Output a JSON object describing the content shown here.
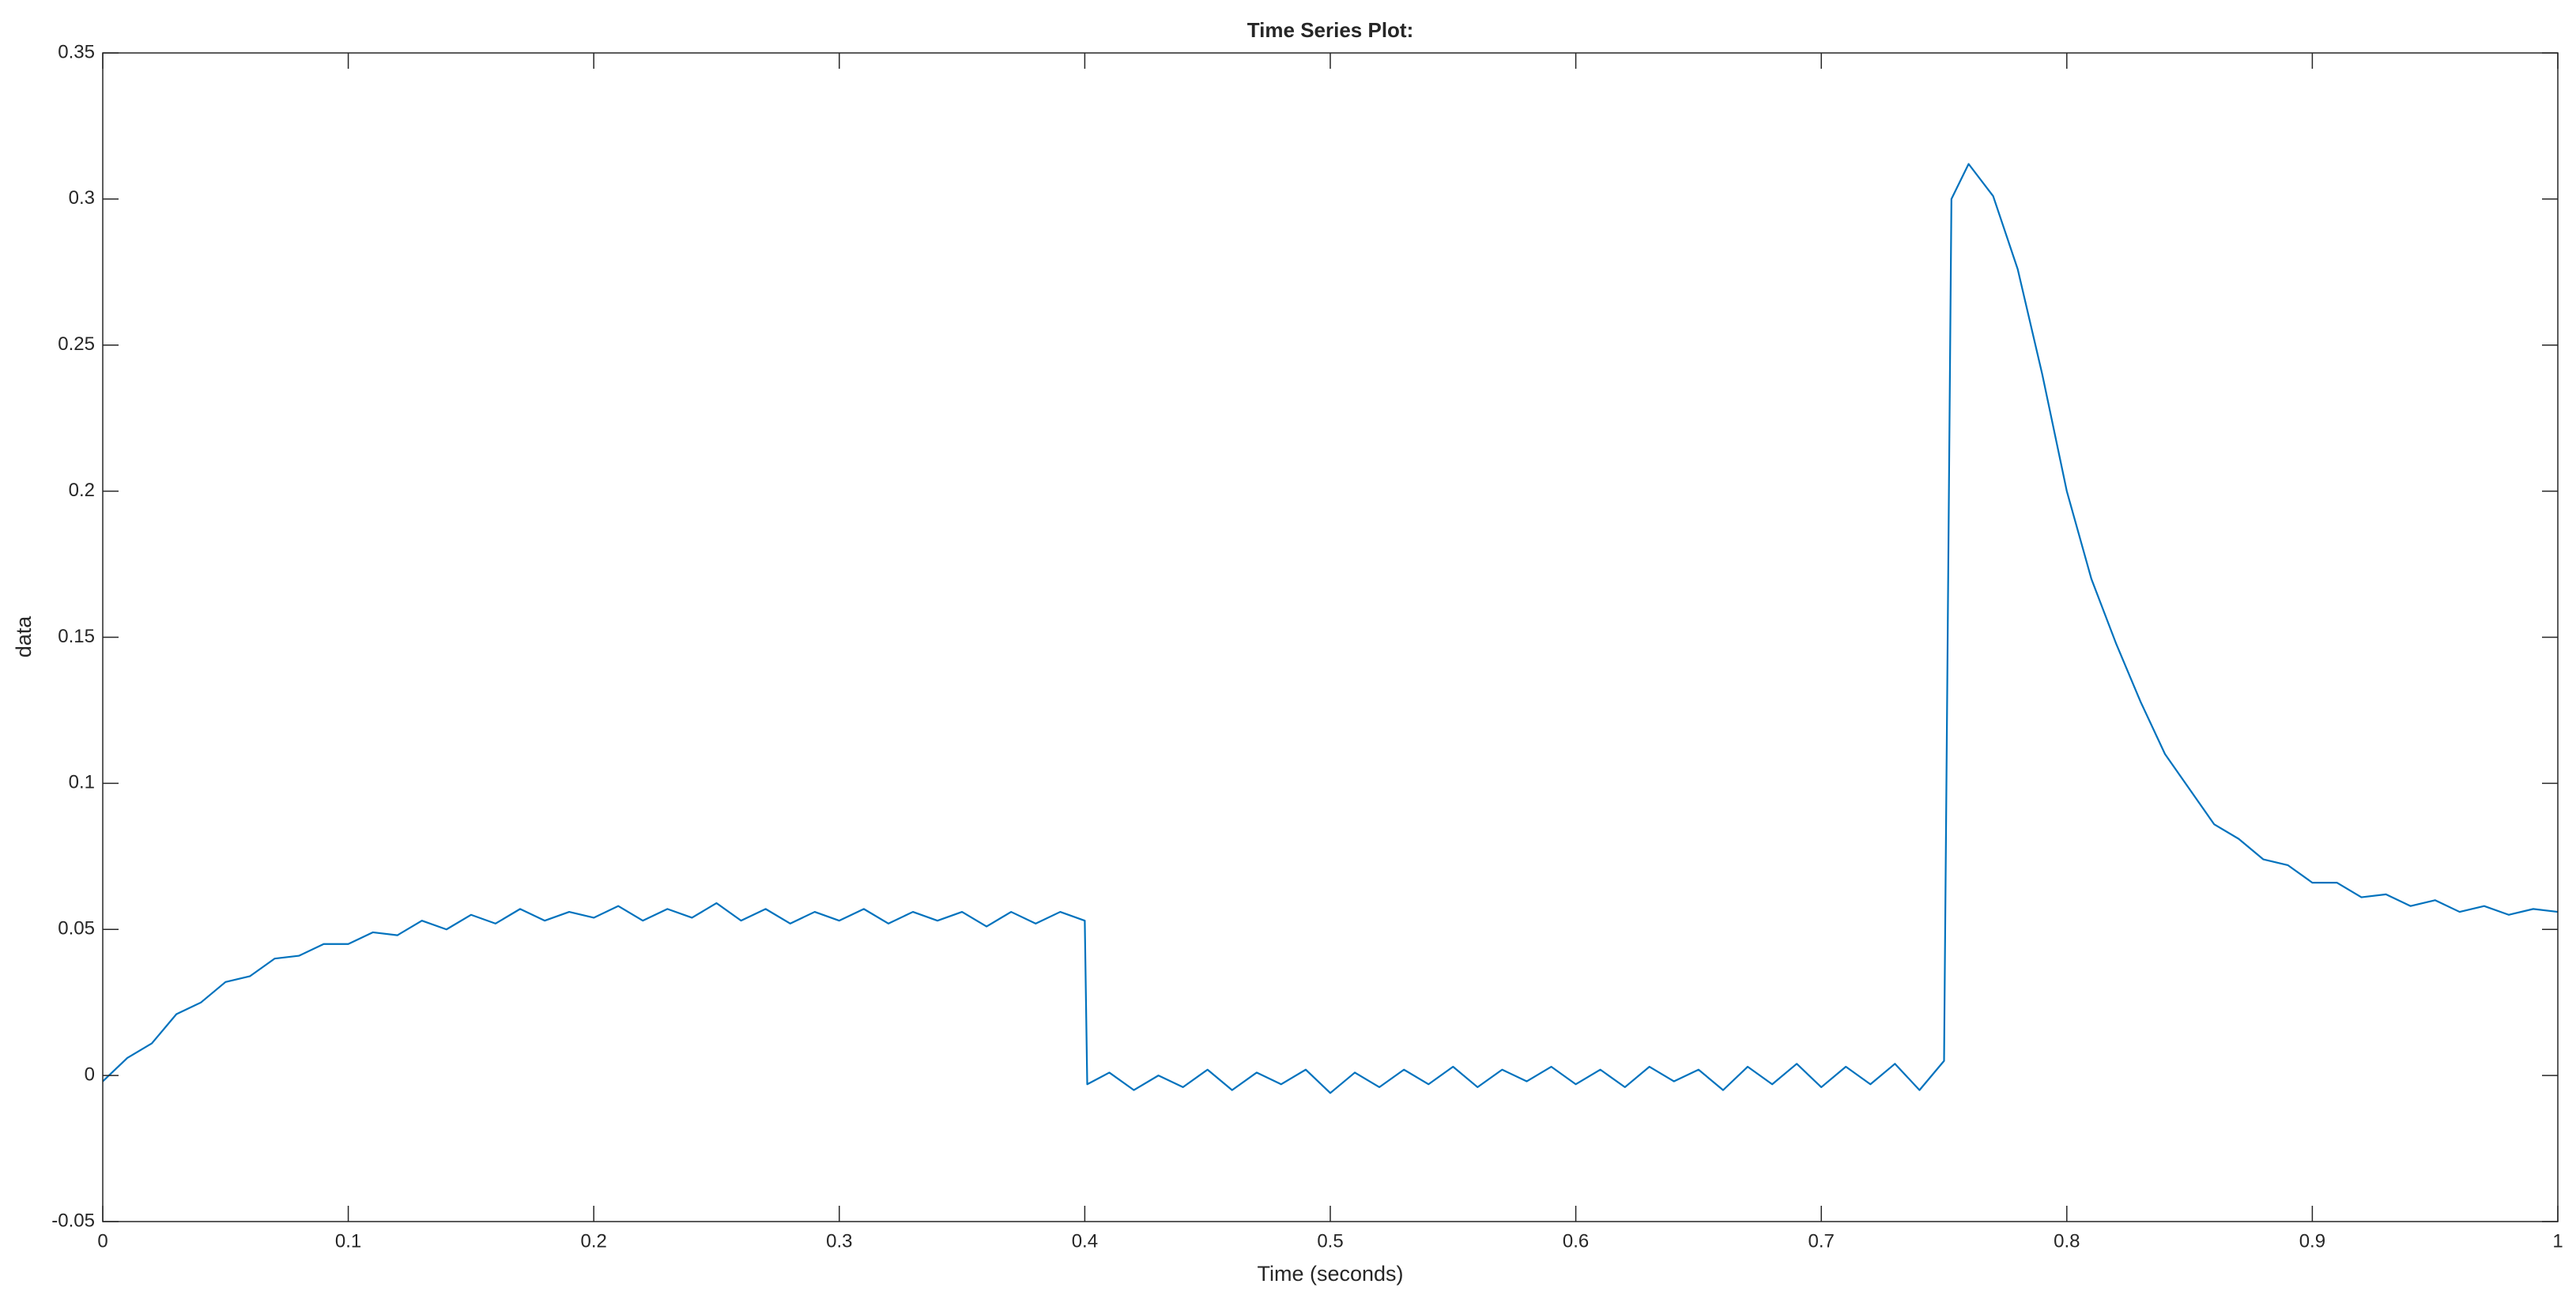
{
  "chart_data": {
    "type": "line",
    "title": "Time Series Plot:",
    "xlabel": "Time (seconds)",
    "ylabel": "data",
    "color": "#0072bd",
    "x": [
      0,
      0.01,
      0.02,
      0.03,
      0.04,
      0.05,
      0.06,
      0.07,
      0.08,
      0.09,
      0.1,
      0.11,
      0.12,
      0.13,
      0.14,
      0.15,
      0.16,
      0.17,
      0.18,
      0.19,
      0.2,
      0.21,
      0.22,
      0.23,
      0.24,
      0.25,
      0.26,
      0.27,
      0.28,
      0.29,
      0.3,
      0.31,
      0.32,
      0.33,
      0.34,
      0.35,
      0.36,
      0.37,
      0.38,
      0.39,
      0.4,
      0.401,
      0.41,
      0.42,
      0.43,
      0.44,
      0.45,
      0.46,
      0.47,
      0.48,
      0.49,
      0.5,
      0.51,
      0.52,
      0.53,
      0.54,
      0.55,
      0.56,
      0.57,
      0.58,
      0.59,
      0.6,
      0.61,
      0.62,
      0.63,
      0.64,
      0.65,
      0.66,
      0.67,
      0.68,
      0.69,
      0.7,
      0.71,
      0.72,
      0.73,
      0.74,
      0.75,
      0.753,
      0.76,
      0.77,
      0.78,
      0.79,
      0.8,
      0.81,
      0.82,
      0.83,
      0.84,
      0.85,
      0.86,
      0.87,
      0.88,
      0.89,
      0.9,
      0.91,
      0.92,
      0.93,
      0.94,
      0.95,
      0.96,
      0.97,
      0.98,
      0.99,
      1
    ],
    "values": [
      -0.002,
      0.006,
      0.011,
      0.021,
      0.025,
      0.032,
      0.034,
      0.04,
      0.041,
      0.045,
      0.045,
      0.049,
      0.048,
      0.053,
      0.05,
      0.055,
      0.052,
      0.057,
      0.053,
      0.056,
      0.054,
      0.058,
      0.053,
      0.057,
      0.054,
      0.059,
      0.053,
      0.057,
      0.052,
      0.056,
      0.053,
      0.057,
      0.052,
      0.056,
      0.053,
      0.056,
      0.051,
      0.056,
      0.052,
      0.056,
      0.053,
      -0.003,
      0.001,
      -0.005,
      0.0,
      -0.004,
      0.002,
      -0.005,
      0.001,
      -0.003,
      0.002,
      -0.006,
      0.001,
      -0.004,
      0.002,
      -0.003,
      0.003,
      -0.004,
      0.002,
      -0.002,
      0.003,
      -0.003,
      0.002,
      -0.004,
      0.003,
      -0.002,
      0.002,
      -0.005,
      0.003,
      -0.003,
      0.004,
      -0.004,
      0.003,
      -0.003,
      0.004,
      -0.005,
      0.005,
      0.3,
      0.312,
      0.301,
      0.276,
      0.24,
      0.2,
      0.17,
      0.148,
      0.128,
      0.11,
      0.098,
      0.086,
      0.081,
      0.074,
      0.072,
      0.066,
      0.066,
      0.061,
      0.062,
      0.058,
      0.06,
      0.056,
      0.058,
      0.055,
      0.057,
      0.056
    ],
    "xlim": [
      0,
      1
    ],
    "xticks": [
      0,
      0.1,
      0.2,
      0.3,
      0.4,
      0.5,
      0.6,
      0.7,
      0.8,
      0.9,
      1
    ],
    "ylim": [
      -0.05,
      0.35
    ],
    "yticks": [
      -0.05,
      0,
      0.05,
      0.1,
      0.15,
      0.2,
      0.25,
      0.3,
      0.35
    ]
  }
}
